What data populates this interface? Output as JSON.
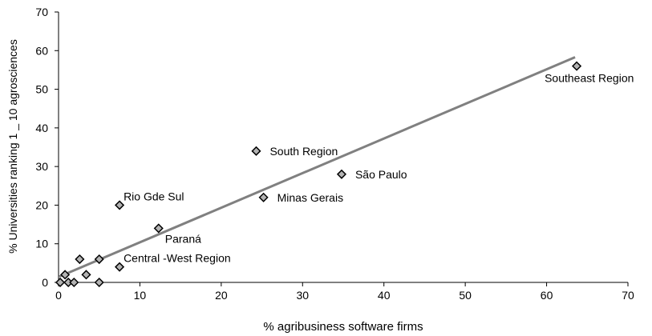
{
  "chart_data": {
    "type": "scatter",
    "title": "",
    "xlabel": "% agribusiness software firms",
    "ylabel": "% Universities ranking 1 _ 10 agrosciences",
    "xlim": [
      0,
      70
    ],
    "ylim": [
      0,
      70
    ],
    "xticks": [
      "0",
      "10",
      "20",
      "30",
      "40",
      "50",
      "60",
      "70"
    ],
    "yticks": [
      "0",
      "10",
      "20",
      "30",
      "40",
      "50",
      "60",
      "70"
    ],
    "grid": false,
    "legend": "none",
    "points": [
      {
        "x": 63.7,
        "y": 56,
        "label": "Southeast Region"
      },
      {
        "x": 24.3,
        "y": 34,
        "label": "South Region"
      },
      {
        "x": 34.8,
        "y": 28,
        "label": "São Paulo"
      },
      {
        "x": 25.2,
        "y": 22,
        "label": "Minas Gerais"
      },
      {
        "x": 7.5,
        "y": 20,
        "label": "Rio Gde Sul"
      },
      {
        "x": 12.3,
        "y": 14,
        "label": "Paraná"
      },
      {
        "x": 7.5,
        "y": 4,
        "label": "Central -West Region"
      },
      {
        "x": 0.2,
        "y": 0,
        "label": ""
      },
      {
        "x": 0.8,
        "y": 2,
        "label": ""
      },
      {
        "x": 1.2,
        "y": 0,
        "label": ""
      },
      {
        "x": 1.9,
        "y": 0,
        "label": ""
      },
      {
        "x": 2.6,
        "y": 6,
        "label": ""
      },
      {
        "x": 3.4,
        "y": 2,
        "label": ""
      },
      {
        "x": 5.0,
        "y": 6,
        "label": ""
      },
      {
        "x": 5.0,
        "y": 0,
        "label": ""
      }
    ],
    "trendline": {
      "x": [
        0.1,
        63.5
      ],
      "y": [
        1.5,
        58.3
      ]
    },
    "colors": {
      "marker_fill": "#b3b3b3",
      "marker_edge": "#000000",
      "trendline": "#808080"
    }
  }
}
